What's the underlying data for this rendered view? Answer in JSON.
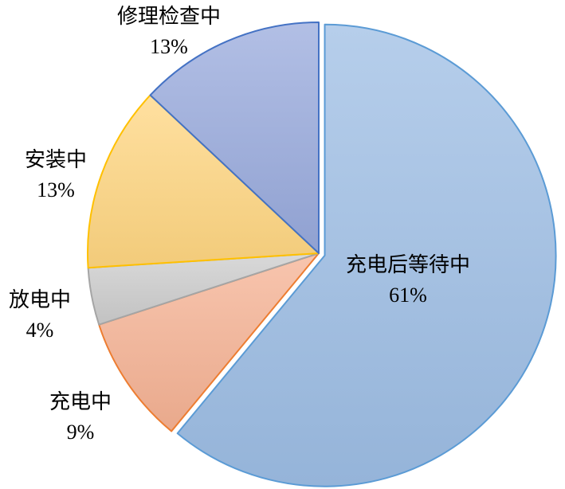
{
  "chart_data": {
    "type": "pie",
    "title": "",
    "start": "12 o'clock, clockwise",
    "slices": [
      {
        "label": "充电后等待中",
        "value": 61,
        "value_label": "61%",
        "color": "#9dbde4",
        "stroke": "#5b9bd5",
        "exploded": true
      },
      {
        "label": "充电中",
        "value": 9,
        "value_label": "9%",
        "color": "#f5b293",
        "stroke": "#ed7d31",
        "exploded": false
      },
      {
        "label": "放电中",
        "value": 4,
        "value_label": "4%",
        "color": "#cccccc",
        "stroke": "#a5a5a5",
        "exploded": false
      },
      {
        "label": "安装中",
        "value": 13,
        "value_label": "13%",
        "color": "#ffd680",
        "stroke": "#ffc000",
        "exploded": false
      },
      {
        "label": "修理检查中",
        "value": 13,
        "value_label": "13%",
        "color": "#98a9dc",
        "stroke": "#4472c4",
        "exploded": false
      }
    ],
    "legend": "none",
    "data_labels": "category name and percentage"
  }
}
